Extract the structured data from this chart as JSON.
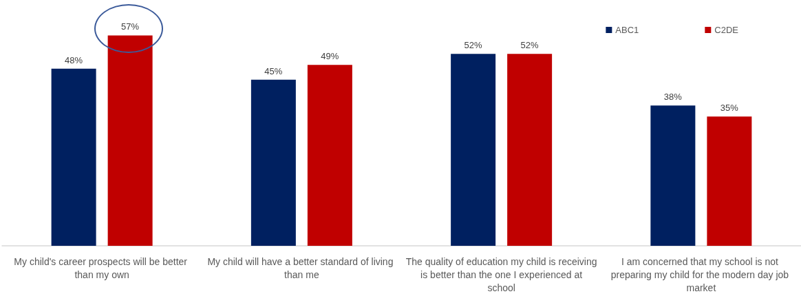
{
  "chart_data": {
    "type": "bar",
    "categories": [
      "My child's career prospects will be better than my own",
      "My child will have a better standard of living than me",
      "The quality of education my child is receiving is better than the one I experienced at school",
      "I am concerned that my school is not preparing my child for the modern day job market"
    ],
    "series": [
      {
        "name": "ABC1",
        "color": "#002060",
        "values": [
          48,
          45,
          52,
          38
        ],
        "value_labels": [
          "48%",
          "45%",
          "52%",
          "38%"
        ]
      },
      {
        "name": "C2DE",
        "color": "#c00000",
        "values": [
          57,
          49,
          52,
          35
        ],
        "value_labels": [
          "57%",
          "49%",
          "52%",
          "35%"
        ]
      }
    ],
    "legend": "top right",
    "tick_labels": "x"
  }
}
